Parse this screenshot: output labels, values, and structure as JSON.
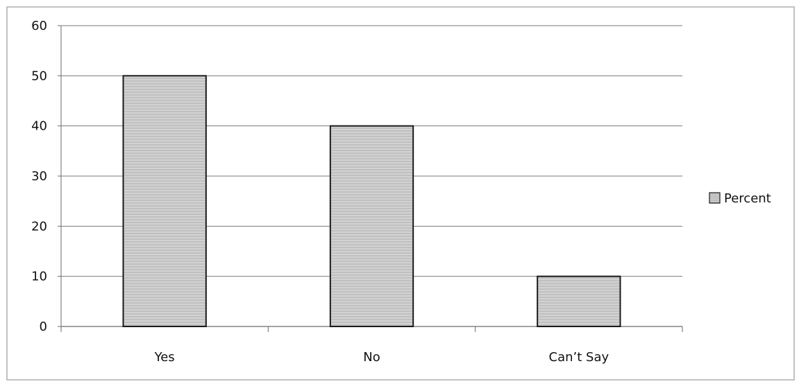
{
  "chart_data": {
    "type": "bar",
    "title": "",
    "xlabel": "",
    "ylabel": "",
    "categories": [
      "Yes",
      "No",
      "Can’t Say"
    ],
    "series": [
      {
        "name": "Percent",
        "values": [
          50,
          40,
          10
        ]
      }
    ],
    "ylim": [
      0,
      60
    ],
    "yticks": [
      "0",
      "10",
      "20",
      "30",
      "40",
      "50",
      "60"
    ],
    "grid": true,
    "legend_position": "right",
    "colors": {
      "bar_fill": "#c9c9c9",
      "bar_stroke": "#1a1a1a",
      "grid": "#7a7a7a",
      "border": "#9a9a9a"
    }
  }
}
